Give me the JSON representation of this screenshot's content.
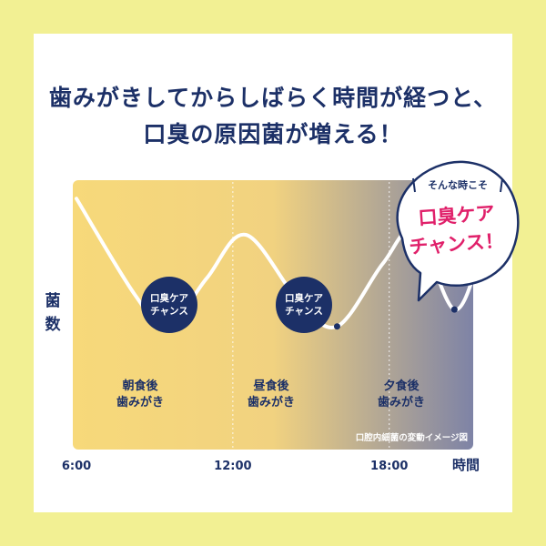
{
  "headline": {
    "line1": "歯みがきしてからしばらく時間が経つと、",
    "line2": "口臭の原因菌が増える！"
  },
  "chart_data": {
    "type": "line",
    "title": "",
    "xlabel": "時間",
    "ylabel": "菌数",
    "x_ticks": [
      "6:00",
      "12:00",
      "18:00"
    ],
    "xlim": [
      "6:00",
      "21:30"
    ],
    "series": [
      {
        "x": [
          "6:00",
          "8:15",
          "9:30",
          "11:00",
          "12:30",
          "14:30",
          "16:00",
          "17:45",
          "19:00",
          "20:30",
          "21:30"
        ],
        "y": [
          95,
          55,
          42,
          62,
          80,
          53,
          42,
          68,
          82,
          49,
          72
        ]
      }
    ],
    "ylim": [
      0,
      100
    ],
    "grid": false,
    "annotations": {
      "after_meal": [
        {
          "line1": "朝食後",
          "line2": "歯みがき"
        },
        {
          "line1": "昼食後",
          "line2": "歯みがき"
        },
        {
          "line1": "夕食後",
          "line2": "歯みがき"
        }
      ],
      "care_badges": [
        {
          "line1": "口臭ケア",
          "line2": "チャンス"
        },
        {
          "line1": "口臭ケア",
          "line2": "チャンス"
        }
      ]
    },
    "note": "口腔内細菌の変動イメージ図",
    "callout": {
      "small": "そんな時こそ",
      "big1": "口臭ケア",
      "big2": "チャンス！"
    },
    "colors": {
      "navy": "#1c3067",
      "pink": "#e0206a",
      "gradient_start": "#f7d97a",
      "gradient_end": "#7e83a6",
      "line": "#ffffff"
    }
  }
}
